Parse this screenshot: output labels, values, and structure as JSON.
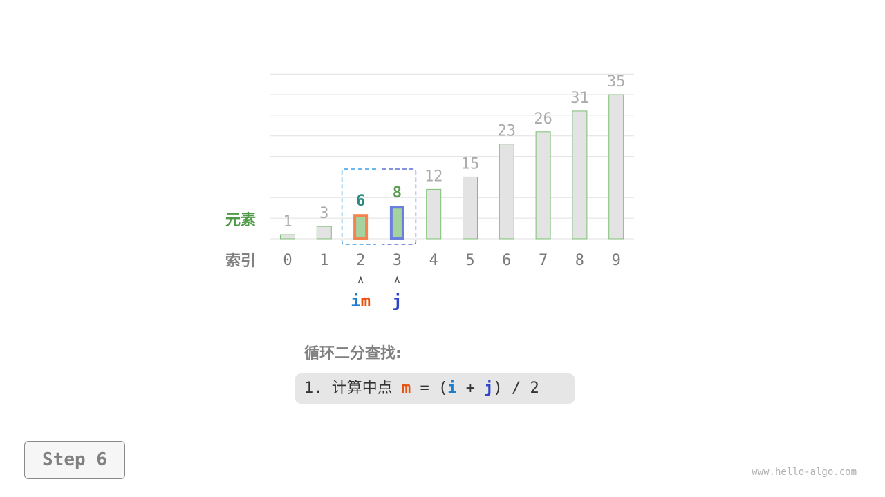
{
  "diagram": {
    "row_labels": {
      "elements": "元素",
      "indices": "索引"
    },
    "values": [
      1,
      3,
      6,
      8,
      12,
      15,
      23,
      26,
      31,
      35
    ],
    "indices": [
      "0",
      "1",
      "2",
      "3",
      "4",
      "5",
      "6",
      "7",
      "8",
      "9"
    ],
    "pointers": [
      {
        "index": 2,
        "parts": [
          {
            "text": "i",
            "color": "#1a7fcf"
          },
          {
            "text": "m",
            "color": "#e8510e"
          }
        ]
      },
      {
        "index": 3,
        "parts": [
          {
            "text": "j",
            "color": "#2f45c8"
          }
        ]
      }
    ],
    "highlight": {
      "range": [
        2,
        3
      ],
      "m_index": 2,
      "m_border": "#f5834f",
      "j_border": "#6b80dc",
      "value_colors": {
        "2": "#2e8b7f",
        "3": "#5a9e4f"
      }
    },
    "colors": {
      "bar_fill": "#e3e3e3",
      "bar_border": "#7dbf75",
      "active_fill": "#a5d3a0",
      "value_label": "#ababab",
      "index_label": "#7a7a7a",
      "grid": "#e0e0e0",
      "bracket_left": "#3ba0e6",
      "bracket_right": "#5b6fd6",
      "element_label": "#4f9a47",
      "index_row_label": "#808080"
    }
  },
  "title": "循环二分查找:",
  "formula": {
    "prefix": "1. 计算中点 ",
    "m": "m",
    "eq": " = (",
    "i": "i",
    "plus": " + ",
    "j": "j",
    "suffix": ") / 2"
  },
  "step_label": "Step 6",
  "watermark": "www.hello-algo.com"
}
